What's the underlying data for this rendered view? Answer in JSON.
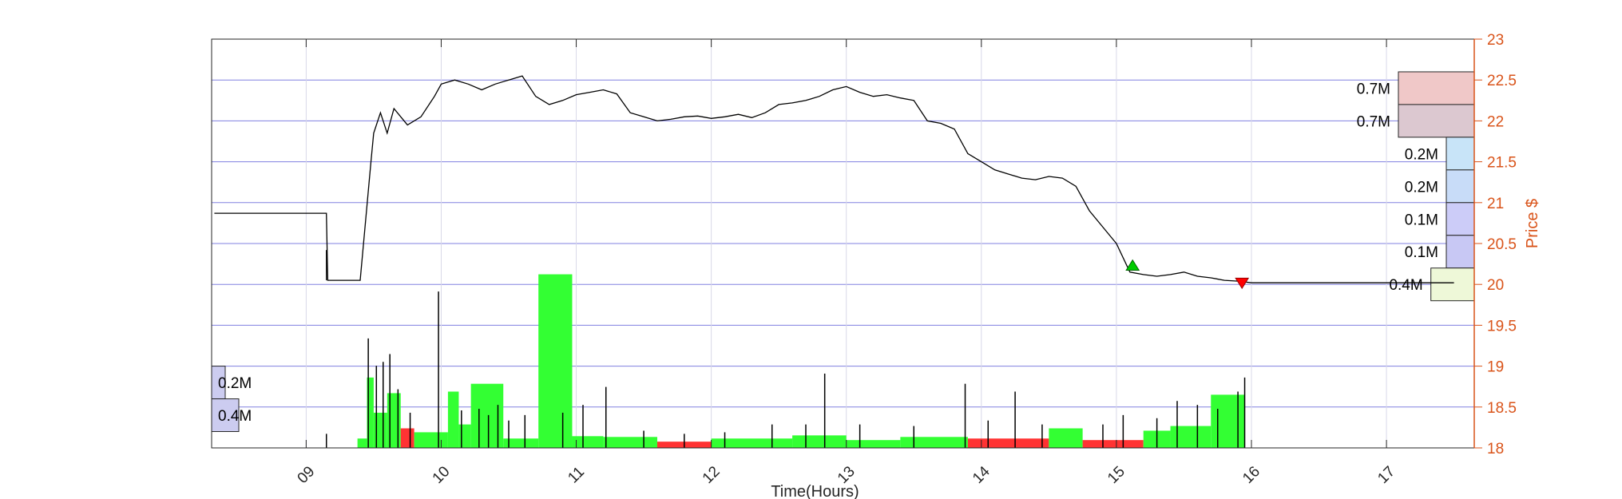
{
  "chart_data": {
    "type": "bar",
    "xlabel": "Time(Hours)",
    "ylabel": "Price $",
    "xlim": [
      8.3,
      17.65
    ],
    "ylim": [
      18,
      23
    ],
    "x_ticks": [
      "09",
      "10",
      "11",
      "12",
      "13",
      "14",
      "15",
      "16",
      "17"
    ],
    "y_ticks": [
      "18",
      "18.5",
      "19",
      "19.5",
      "20",
      "20.5",
      "21",
      "21.5",
      "22",
      "22.5",
      "23"
    ],
    "grid": true,
    "colors": {
      "price_line": "#000000",
      "volume_up": "#33ff33",
      "volume_down": "#ff3333",
      "grid": "#8080e0",
      "price_axis": "#D95319",
      "buy_marker": "#00cc00",
      "sell_marker": "#ff0000"
    },
    "price_series": {
      "name": "",
      "x": [
        8.32,
        9.15,
        9.16,
        9.4,
        9.48,
        9.5,
        9.55,
        9.6,
        9.65,
        9.75,
        9.85,
        9.95,
        10.0,
        10.1,
        10.2,
        10.3,
        10.4,
        10.5,
        10.6,
        10.7,
        10.8,
        10.9,
        11.0,
        11.1,
        11.2,
        11.3,
        11.4,
        11.5,
        11.6,
        11.7,
        11.8,
        11.9,
        12.0,
        12.1,
        12.2,
        12.3,
        12.4,
        12.5,
        12.6,
        12.7,
        12.8,
        12.9,
        13.0,
        13.1,
        13.2,
        13.3,
        13.4,
        13.5,
        13.6,
        13.7,
        13.8,
        13.9,
        14.0,
        14.1,
        14.2,
        14.3,
        14.4,
        14.5,
        14.6,
        14.7,
        14.8,
        14.9,
        15.0,
        15.1,
        15.2,
        15.3,
        15.4,
        15.5,
        15.6,
        15.7,
        15.8,
        15.9,
        16.0,
        16.2,
        16.5,
        17.0,
        17.5
      ],
      "values": [
        20.87,
        20.87,
        20.05,
        20.05,
        21.5,
        21.85,
        22.1,
        21.85,
        22.15,
        21.95,
        22.05,
        22.3,
        22.45,
        22.5,
        22.45,
        22.38,
        22.45,
        22.5,
        22.55,
        22.3,
        22.2,
        22.25,
        22.32,
        22.35,
        22.38,
        22.33,
        22.1,
        22.05,
        22.0,
        22.02,
        22.05,
        22.06,
        22.03,
        22.05,
        22.08,
        22.04,
        22.1,
        22.2,
        22.22,
        22.25,
        22.3,
        22.38,
        22.42,
        22.35,
        22.3,
        22.32,
        22.28,
        22.25,
        22.0,
        21.97,
        21.9,
        21.6,
        21.5,
        21.4,
        21.35,
        21.3,
        21.28,
        21.32,
        21.3,
        21.2,
        20.9,
        20.7,
        20.5,
        20.15,
        20.12,
        20.1,
        20.12,
        20.15,
        20.1,
        20.08,
        20.05,
        20.04,
        20.02,
        20.02,
        20.02,
        20.02,
        20.02
      ]
    },
    "trade_markers": [
      {
        "type": "buy",
        "x": 15.12,
        "value": 20.22
      },
      {
        "type": "sell",
        "x": 15.93,
        "value": 20.03
      }
    ],
    "volume_profile_right": [
      {
        "price_low": 22.2,
        "price_high": 22.6,
        "label": "0.7M",
        "fill": "#f0c8c8"
      },
      {
        "price_low": 21.8,
        "price_high": 22.2,
        "label": "0.7M",
        "fill": "#dcc8d0"
      },
      {
        "price_low": 21.4,
        "price_high": 21.8,
        "label": "0.2M",
        "fill": "#c8e4f8"
      },
      {
        "price_low": 21.0,
        "price_high": 21.4,
        "label": "0.2M",
        "fill": "#c8dcf8"
      },
      {
        "price_low": 20.6,
        "price_high": 21.0,
        "label": "0.1M",
        "fill": "#ccccf8"
      },
      {
        "price_low": 20.2,
        "price_high": 20.6,
        "label": "0.1M",
        "fill": "#c8c8f4"
      },
      {
        "price_low": 19.8,
        "price_high": 20.2,
        "label": "0.4M",
        "fill": "#eef8d8"
      }
    ],
    "volume_profile_left": [
      {
        "price_low": 18.6,
        "price_high": 19.0,
        "label": "0.2M",
        "fill": "#ccccf0"
      },
      {
        "price_low": 18.2,
        "price_high": 18.6,
        "label": "0.4M",
        "fill": "#ccccf0"
      }
    ],
    "volume_blocks": [
      {
        "x0": 9.38,
        "x1": 9.45,
        "value": 0.12,
        "side": "up"
      },
      {
        "x0": 9.45,
        "x1": 9.5,
        "value": 0.9,
        "side": "up"
      },
      {
        "x0": 9.5,
        "x1": 9.6,
        "value": 0.45,
        "side": "up"
      },
      {
        "x0": 9.6,
        "x1": 9.7,
        "value": 0.7,
        "side": "up"
      },
      {
        "x0": 9.7,
        "x1": 9.8,
        "value": 0.25,
        "side": "down"
      },
      {
        "x0": 9.8,
        "x1": 10.05,
        "value": 0.2,
        "side": "up"
      },
      {
        "x0": 10.05,
        "x1": 10.13,
        "value": 0.72,
        "side": "up"
      },
      {
        "x0": 10.13,
        "x1": 10.22,
        "value": 0.3,
        "side": "up"
      },
      {
        "x0": 10.22,
        "x1": 10.46,
        "value": 0.82,
        "side": "up"
      },
      {
        "x0": 10.46,
        "x1": 10.72,
        "value": 0.12,
        "side": "up"
      },
      {
        "x0": 10.72,
        "x1": 10.97,
        "value": 2.22,
        "side": "up"
      },
      {
        "x0": 10.97,
        "x1": 11.2,
        "value": 0.15,
        "side": "up"
      },
      {
        "x0": 11.2,
        "x1": 11.6,
        "value": 0.14,
        "side": "up"
      },
      {
        "x0": 11.6,
        "x1": 12.0,
        "value": 0.08,
        "side": "down"
      },
      {
        "x0": 12.0,
        "x1": 12.6,
        "value": 0.12,
        "side": "up"
      },
      {
        "x0": 12.6,
        "x1": 13.0,
        "value": 0.16,
        "side": "up"
      },
      {
        "x0": 13.0,
        "x1": 13.4,
        "value": 0.1,
        "side": "up"
      },
      {
        "x0": 13.4,
        "x1": 13.9,
        "value": 0.14,
        "side": "up"
      },
      {
        "x0": 13.9,
        "x1": 14.5,
        "value": 0.12,
        "side": "down"
      },
      {
        "x0": 14.5,
        "x1": 14.75,
        "value": 0.25,
        "side": "up"
      },
      {
        "x0": 14.75,
        "x1": 15.2,
        "value": 0.1,
        "side": "down"
      },
      {
        "x0": 15.2,
        "x1": 15.4,
        "value": 0.22,
        "side": "up"
      },
      {
        "x0": 15.4,
        "x1": 15.7,
        "value": 0.28,
        "side": "up"
      },
      {
        "x0": 15.7,
        "x1": 15.95,
        "value": 0.68,
        "side": "up"
      }
    ],
    "volume_spikes": [
      {
        "x": 9.46,
        "value": 1.4
      },
      {
        "x": 9.52,
        "value": 1.05
      },
      {
        "x": 9.57,
        "value": 1.1
      },
      {
        "x": 9.62,
        "value": 1.2
      },
      {
        "x": 9.68,
        "value": 0.75
      },
      {
        "x": 9.77,
        "value": 0.45
      },
      {
        "x": 9.98,
        "value": 2.0
      },
      {
        "x": 10.15,
        "value": 0.48
      },
      {
        "x": 10.28,
        "value": 0.5
      },
      {
        "x": 10.35,
        "value": 0.42
      },
      {
        "x": 10.42,
        "value": 0.55
      },
      {
        "x": 10.5,
        "value": 0.35
      },
      {
        "x": 10.62,
        "value": 0.42
      },
      {
        "x": 10.9,
        "value": 0.45
      },
      {
        "x": 11.05,
        "value": 0.55
      },
      {
        "x": 11.22,
        "value": 0.78
      },
      {
        "x": 11.5,
        "value": 0.22
      },
      {
        "x": 11.8,
        "value": 0.18
      },
      {
        "x": 12.1,
        "value": 0.2
      },
      {
        "x": 12.45,
        "value": 0.3
      },
      {
        "x": 12.7,
        "value": 0.3
      },
      {
        "x": 12.84,
        "value": 0.95
      },
      {
        "x": 13.1,
        "value": 0.3
      },
      {
        "x": 13.5,
        "value": 0.28
      },
      {
        "x": 13.88,
        "value": 0.82
      },
      {
        "x": 14.05,
        "value": 0.35
      },
      {
        "x": 14.25,
        "value": 0.72
      },
      {
        "x": 14.45,
        "value": 0.3
      },
      {
        "x": 14.9,
        "value": 0.3
      },
      {
        "x": 15.05,
        "value": 0.42
      },
      {
        "x": 15.3,
        "value": 0.38
      },
      {
        "x": 15.45,
        "value": 0.6
      },
      {
        "x": 15.6,
        "value": 0.55
      },
      {
        "x": 15.75,
        "value": 0.5
      },
      {
        "x": 15.9,
        "value": 0.72
      },
      {
        "x": 15.95,
        "value": 0.9
      },
      {
        "x": 9.15,
        "value": 0.18
      }
    ]
  }
}
